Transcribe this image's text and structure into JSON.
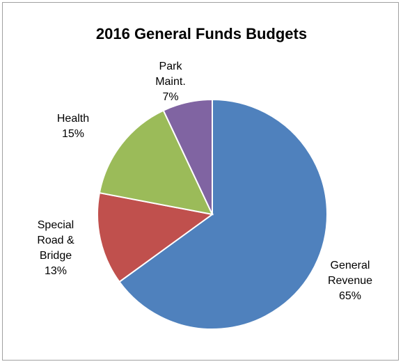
{
  "chart_data": {
    "type": "pie",
    "title": "2016 General Funds Budgets",
    "slices": [
      {
        "label_lines": [
          "General",
          "Revenue"
        ],
        "percent_label": "65%",
        "value": 65,
        "color": "#4f81bd"
      },
      {
        "label_lines": [
          "Special",
          "Road &",
          "Bridge"
        ],
        "percent_label": "13%",
        "value": 13,
        "color": "#c0504d"
      },
      {
        "label_lines": [
          "Health"
        ],
        "percent_label": "15%",
        "value": 15,
        "color": "#9bbb59"
      },
      {
        "label_lines": [
          "Park",
          "Maint."
        ],
        "percent_label": "7%",
        "value": 7,
        "color": "#8064a2"
      }
    ]
  }
}
